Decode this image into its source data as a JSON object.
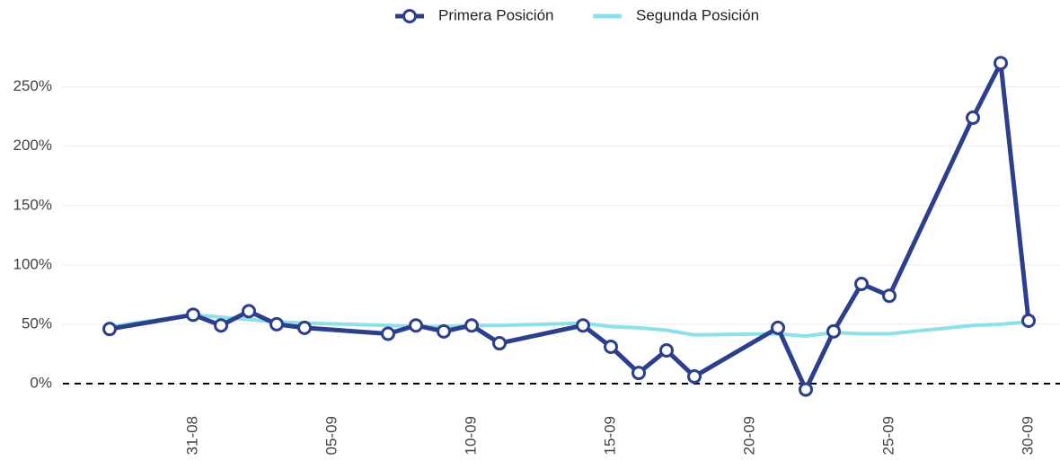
{
  "chart_data": {
    "type": "line",
    "x": [
      "28-08",
      "31-08",
      "01-09",
      "02-09",
      "03-09",
      "04-09",
      "07-09",
      "08-09",
      "09-09",
      "10-09",
      "11-09",
      "14-09",
      "15-09",
      "16-09",
      "17-09",
      "18-09",
      "21-09",
      "22-09",
      "23-09",
      "24-09",
      "25-09",
      "28-09",
      "29-09",
      "30-09"
    ],
    "series": [
      {
        "name": "Primera Posición",
        "color": "#2b3f8c",
        "markers": true,
        "values": [
          46,
          58,
          49,
          61,
          50,
          47,
          42,
          49,
          44,
          49,
          34,
          49,
          31,
          9,
          28,
          6,
          47,
          -5,
          44,
          84,
          74,
          224,
          270,
          53
        ]
      },
      {
        "name": "Segunda Posición",
        "color": "#8de0e8",
        "markers": false,
        "values": [
          48,
          58,
          56,
          54,
          52,
          51,
          49,
          48,
          48,
          49,
          49,
          51,
          48,
          47,
          45,
          41,
          42,
          40,
          43,
          42,
          42,
          49,
          50,
          52
        ]
      }
    ],
    "xlim": [
      "27-08",
      "01-10"
    ],
    "xticks": [
      "31-08",
      "05-09",
      "10-09",
      "15-09",
      "20-09",
      "25-09",
      "30-09"
    ],
    "ylim": [
      -25,
      280
    ],
    "yticks": [
      {
        "value": 0,
        "label": "0%"
      },
      {
        "value": 50,
        "label": "50%"
      },
      {
        "value": 100,
        "label": "100%"
      },
      {
        "value": 150,
        "label": "150%"
      },
      {
        "value": 200,
        "label": "200%"
      },
      {
        "value": 250,
        "label": "250%"
      }
    ],
    "hline": 0,
    "grid": true,
    "legend": "top"
  }
}
